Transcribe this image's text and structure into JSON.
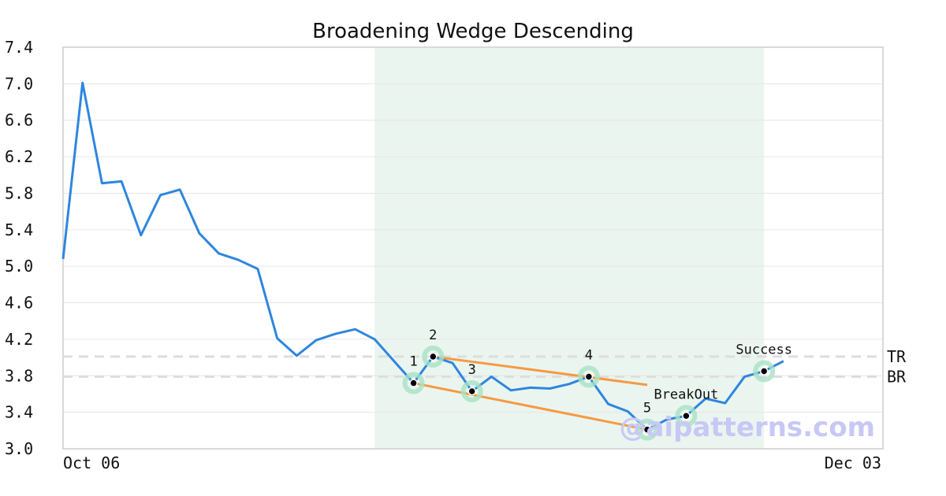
{
  "chart_data": {
    "type": "line",
    "title": "Broadening Wedge Descending",
    "xlabel": "",
    "ylabel": "",
    "ylim": [
      3.0,
      7.4
    ],
    "yticks": [
      "3.0",
      "3.4",
      "3.8",
      "4.2",
      "4.6",
      "5.0",
      "5.4",
      "5.8",
      "6.2",
      "6.6",
      "7.0",
      "7.4"
    ],
    "xtick_labels": [
      "Oct 06",
      "Dec 03"
    ],
    "grid": true,
    "n_points": 38,
    "series": [
      {
        "values": [
          5.08,
          7.01,
          5.91,
          5.93,
          5.34,
          5.78,
          5.84,
          5.36,
          5.14,
          5.07,
          4.97,
          4.21,
          4.02,
          4.19,
          4.26,
          4.31,
          4.2,
          3.96,
          3.72,
          4.01,
          3.94,
          3.63,
          3.79,
          3.64,
          3.67,
          3.66,
          3.71,
          3.79,
          3.49,
          3.41,
          3.21,
          3.32,
          3.36,
          3.55,
          3.5,
          3.79,
          3.85,
          3.96
        ],
        "color": "#2e86de"
      }
    ],
    "pattern_region": {
      "start_index": 16,
      "end_index": 36,
      "color": "#eaf5f0"
    },
    "pattern_points": [
      {
        "label": "1",
        "index": 18,
        "value": 3.72
      },
      {
        "label": "2",
        "index": 19,
        "value": 4.01
      },
      {
        "label": "3",
        "index": 21,
        "value": 3.63
      },
      {
        "label": "4",
        "index": 27,
        "value": 3.79
      },
      {
        "label": "5",
        "index": 30,
        "value": 3.21
      }
    ],
    "trend_lines": [
      {
        "from_index": 19,
        "from_value": 4.01,
        "to_index": 30,
        "to_value": 3.7,
        "color": "#f59a42"
      },
      {
        "from_index": 18,
        "from_value": 3.72,
        "to_index": 30,
        "to_value": 3.21,
        "color": "#f59a42"
      }
    ],
    "annotations": [
      {
        "label": "BreakOut",
        "index": 32,
        "value": 3.36
      },
      {
        "label": "Success",
        "index": 36,
        "value": 3.85
      }
    ],
    "levels": [
      {
        "label": "TR",
        "value": 4.01
      },
      {
        "label": "BR",
        "value": 3.79
      }
    ],
    "watermark": "@aipatterns.com"
  }
}
